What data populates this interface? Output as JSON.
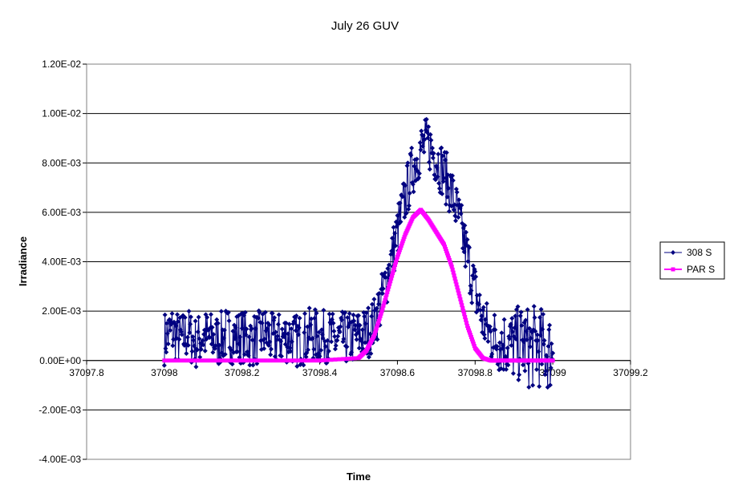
{
  "chart_data": {
    "type": "line",
    "title": "July 26 GUV",
    "xlabel": "Time",
    "ylabel": "Irradiance",
    "xlim": [
      37097.8,
      37099.2
    ],
    "ylim": [
      -0.004,
      0.012
    ],
    "x_ticks": [
      "37097.8",
      "37098",
      "37098.2",
      "37098.4",
      "37098.6",
      "37098.8",
      "37099",
      "37099.2"
    ],
    "x_tick_values": [
      37097.8,
      37098.0,
      37098.2,
      37098.4,
      37098.6,
      37098.8,
      37099.0,
      37099.2
    ],
    "y_ticks": [
      "1.20E-02",
      "1.00E-02",
      "8.00E-03",
      "6.00E-03",
      "4.00E-03",
      "2.00E-03",
      "0.00E+00",
      "-2.00E-03",
      "-4.00E-03"
    ],
    "y_tick_values": [
      0.012,
      0.01,
      0.008,
      0.006,
      0.004,
      0.002,
      0.0,
      -0.002,
      -0.004
    ],
    "grid": "horizontal",
    "legend": "right",
    "series": [
      {
        "name": "308 S",
        "color": "#000080",
        "marker": "diamond",
        "x": [
          37098.0,
          37098.02,
          37098.04,
          37098.06,
          37098.08,
          37098.1,
          37098.12,
          37098.14,
          37098.16,
          37098.18,
          37098.2,
          37098.22,
          37098.24,
          37098.26,
          37098.28,
          37098.3,
          37098.32,
          37098.34,
          37098.36,
          37098.38,
          37098.4,
          37098.42,
          37098.44,
          37098.46,
          37098.48,
          37098.5,
          37098.52,
          37098.54,
          37098.56,
          37098.58,
          37098.6,
          37098.62,
          37098.64,
          37098.66,
          37098.68,
          37098.7,
          37098.72,
          37098.74,
          37098.76,
          37098.78,
          37098.8,
          37098.82,
          37098.84,
          37098.86,
          37098.88,
          37098.9,
          37098.92,
          37098.94,
          37098.96,
          37098.98,
          37099.0
        ],
        "values": [
          0.0009,
          0.0012,
          0.0008,
          0.0011,
          0.0007,
          0.001,
          0.0009,
          0.0008,
          0.0011,
          0.0009,
          0.001,
          0.0008,
          0.0009,
          0.0011,
          0.0008,
          0.0009,
          0.001,
          0.0008,
          0.0009,
          0.0011,
          0.0009,
          0.001,
          0.0008,
          0.0009,
          0.0009,
          0.001,
          0.0011,
          0.0015,
          0.0025,
          0.0038,
          0.0052,
          0.0066,
          0.0078,
          0.0086,
          0.0088,
          0.0082,
          0.0076,
          0.0068,
          0.0056,
          0.0042,
          0.0028,
          0.0016,
          0.001,
          0.0008,
          0.0007,
          0.0006,
          0.0007,
          0.0005,
          0.0006,
          0.0004,
          0.0003
        ],
        "spread": [
          0.0011,
          0.0011,
          0.0011,
          0.0011,
          0.0011,
          0.0011,
          0.0011,
          0.0011,
          0.0011,
          0.0011,
          0.0011,
          0.0011,
          0.0011,
          0.0011,
          0.0011,
          0.0011,
          0.0011,
          0.0011,
          0.0011,
          0.0011,
          0.0011,
          0.0011,
          0.0011,
          0.0011,
          0.0011,
          0.0011,
          0.0011,
          0.0011,
          0.0011,
          0.0011,
          0.0011,
          0.0011,
          0.0011,
          0.0011,
          0.0011,
          0.0011,
          0.0011,
          0.0011,
          0.0011,
          0.0011,
          0.0011,
          0.0011,
          0.0012,
          0.0013,
          0.0014,
          0.0015,
          0.0016,
          0.0017,
          0.0017,
          0.0016,
          0.0016
        ]
      },
      {
        "name": "PAR S",
        "color": "#ff00ff",
        "marker": "square",
        "x": [
          37098.0,
          37098.1,
          37098.2,
          37098.3,
          37098.4,
          37098.5,
          37098.52,
          37098.54,
          37098.56,
          37098.58,
          37098.6,
          37098.62,
          37098.64,
          37098.66,
          37098.68,
          37098.7,
          37098.72,
          37098.74,
          37098.76,
          37098.78,
          37098.8,
          37098.82,
          37098.84,
          37098.86,
          37098.9,
          37098.95,
          37099.0
        ],
        "values": [
          0.0,
          0.0,
          0.0,
          0.0,
          0.0,
          0.0001,
          0.0004,
          0.001,
          0.002,
          0.0031,
          0.0042,
          0.0051,
          0.0058,
          0.0061,
          0.0057,
          0.0052,
          0.0047,
          0.0038,
          0.0026,
          0.0014,
          0.0005,
          0.0001,
          0.0,
          0.0,
          0.0,
          0.0,
          0.0
        ]
      }
    ]
  }
}
